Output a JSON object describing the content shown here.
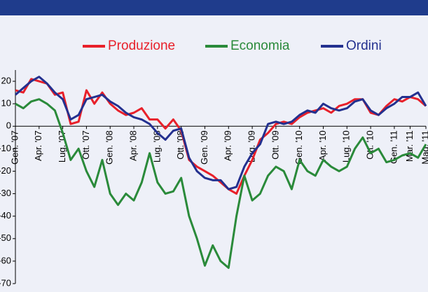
{
  "chart_data": {
    "type": "line",
    "categories": [
      "Gen. '07",
      null,
      null,
      "Apr. '07",
      null,
      null,
      "Lug. '07",
      null,
      null,
      "Ott. '07",
      null,
      null,
      "Gen. '08",
      null,
      null,
      "Apr. '08",
      null,
      null,
      "Lug. '08",
      null,
      null,
      "Ott. '08",
      null,
      null,
      "Gen. '09",
      null,
      null,
      "Apr. '09",
      null,
      null,
      "Lug. '09",
      null,
      null,
      "Ott. '09",
      null,
      null,
      "Gen. '10",
      null,
      null,
      "Apr. '10",
      null,
      null,
      "Lug. '10",
      null,
      null,
      "Ott. '10",
      null,
      null,
      "Gen. '11",
      null,
      "Mar. '11",
      null,
      "Mag. '11"
    ],
    "series": [
      {
        "name": "Produzione",
        "color": "#e8202a",
        "values": [
          16,
          15,
          21,
          20,
          19,
          14,
          15,
          1,
          2,
          16,
          10,
          15,
          10,
          7,
          5,
          6,
          8,
          3,
          3,
          -1,
          3,
          -2,
          -15,
          -18,
          -20,
          -22,
          -25,
          -28,
          -30,
          -22,
          -15,
          -6,
          -3,
          1,
          2,
          1,
          4,
          6,
          7,
          8,
          6,
          9,
          10,
          12,
          12,
          6,
          5,
          9,
          12,
          11,
          13,
          12,
          9
        ]
      },
      {
        "name": "Economia",
        "color": "#2a8a3a",
        "values": [
          10,
          8,
          11,
          12,
          10,
          7,
          -3,
          -15,
          -10,
          -20,
          -27,
          -15,
          -30,
          -35,
          -30,
          -33,
          -25,
          -12,
          -25,
          -30,
          -29,
          -23,
          -40,
          -50,
          -62,
          -53,
          -60,
          -63,
          -40,
          -22,
          -33,
          -30,
          -22,
          -18,
          -20,
          -28,
          -15,
          -20,
          -22,
          -15,
          -18,
          -20,
          -18,
          -10,
          -5,
          -12,
          -10,
          -16,
          -15,
          -13,
          -12,
          -14,
          -8
        ]
      },
      {
        "name": "Ordini",
        "color": "#23308f",
        "values": [
          14,
          17,
          20,
          22,
          19,
          15,
          12,
          3,
          5,
          12,
          13,
          14,
          11,
          9,
          6,
          4,
          3,
          1,
          -3,
          -6,
          -2,
          -1,
          -14,
          -20,
          -23,
          -24,
          -24,
          -28,
          -27,
          -18,
          -12,
          -8,
          1,
          2,
          1,
          2,
          5,
          7,
          6,
          10,
          8,
          7,
          8,
          11,
          12,
          7,
          5,
          8,
          10,
          13,
          13,
          15,
          9
        ]
      }
    ],
    "ylim": [
      -70,
      25
    ],
    "yticks": [
      -70,
      -60,
      -50,
      -40,
      -30,
      -20,
      -10,
      0,
      10,
      20
    ]
  }
}
